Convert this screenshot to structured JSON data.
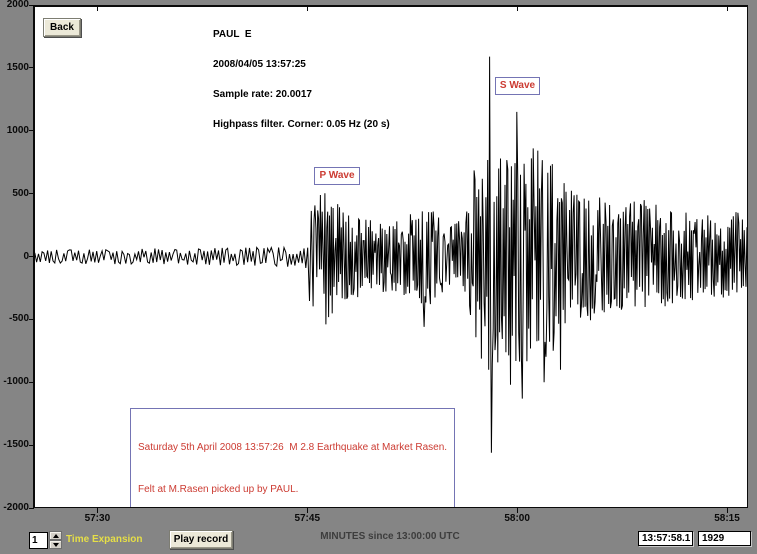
{
  "window": {
    "bg_color": "#858585",
    "plot_bg": "#ffffff"
  },
  "toolbar": {
    "back_label": "Back"
  },
  "header": {
    "station": "PAUL  E",
    "datetime": "2008/04/05 13:57:25",
    "sample_rate": "Sample rate: 20.0017",
    "filter": "Highpass filter. Corner: 0.05 Hz (20 s)"
  },
  "annotations": {
    "p_wave": "P Wave",
    "s_wave": "S Wave",
    "note_line1": "Saturday 5th April 2008 13:57:26  M 2.8 Earthquake at Market Rasen.",
    "note_line2": "Felt at M.Rasen picked up by PAUL.",
    "text_color": "#cc3b32",
    "border_color": "#7474b4"
  },
  "controls": {
    "time_expansion_value": "1",
    "time_expansion_label": "Time Expansion",
    "play_button": "Play record",
    "time_readout": "13:57:58.1",
    "amplitude_readout": "1929"
  },
  "chart_data": {
    "type": "line",
    "title": "",
    "xlabel": "MINUTES since 13:00:00 UTC",
    "ylabel": "",
    "trace_color": "#000000",
    "grid": false,
    "xlim_seconds": [
      3445.4,
      3496.5
    ],
    "ylim": [
      -2000,
      2000
    ],
    "xticks": [
      {
        "t": 3450,
        "label": "57:30"
      },
      {
        "t": 3465,
        "label": "57:45"
      },
      {
        "t": 3480,
        "label": "58:00"
      },
      {
        "t": 3495,
        "label": "58:15"
      }
    ],
    "yticks": [
      2000,
      1500,
      1000,
      500,
      0,
      -500,
      -1000,
      -1500,
      -2000
    ],
    "p_onset_seconds": 3465.3,
    "s_onset_seconds": 3476.8,
    "noise_seed": 20080405,
    "envelope": [
      [
        3445.4,
        55
      ],
      [
        3450,
        60
      ],
      [
        3456,
        65
      ],
      [
        3461,
        75
      ],
      [
        3464.8,
        85
      ],
      [
        3465.3,
        460
      ],
      [
        3466.4,
        520
      ],
      [
        3467.6,
        370
      ],
      [
        3469.5,
        300
      ],
      [
        3471.5,
        290
      ],
      [
        3473.3,
        430
      ],
      [
        3474.6,
        300
      ],
      [
        3476.2,
        280
      ],
      [
        3476.8,
        650
      ],
      [
        3477.6,
        900
      ],
      [
        3478.4,
        950
      ],
      [
        3479.3,
        820
      ],
      [
        3480.3,
        900
      ],
      [
        3481.6,
        870
      ],
      [
        3483.2,
        680
      ],
      [
        3485,
        520
      ],
      [
        3487,
        430
      ],
      [
        3489,
        470
      ],
      [
        3491,
        380
      ],
      [
        3493.5,
        330
      ],
      [
        3495.5,
        370
      ],
      [
        3496.5,
        290
      ]
    ],
    "spikes": [
      [
        3466.35,
        -540
      ],
      [
        3473.35,
        -560
      ],
      [
        3478.0,
        1590
      ],
      [
        3478.15,
        -1560
      ],
      [
        3479.55,
        -1020
      ],
      [
        3479.95,
        1150
      ],
      [
        3480.35,
        -1130
      ],
      [
        3481.15,
        860
      ],
      [
        3481.9,
        -1000
      ],
      [
        3483.1,
        -900
      ]
    ]
  }
}
